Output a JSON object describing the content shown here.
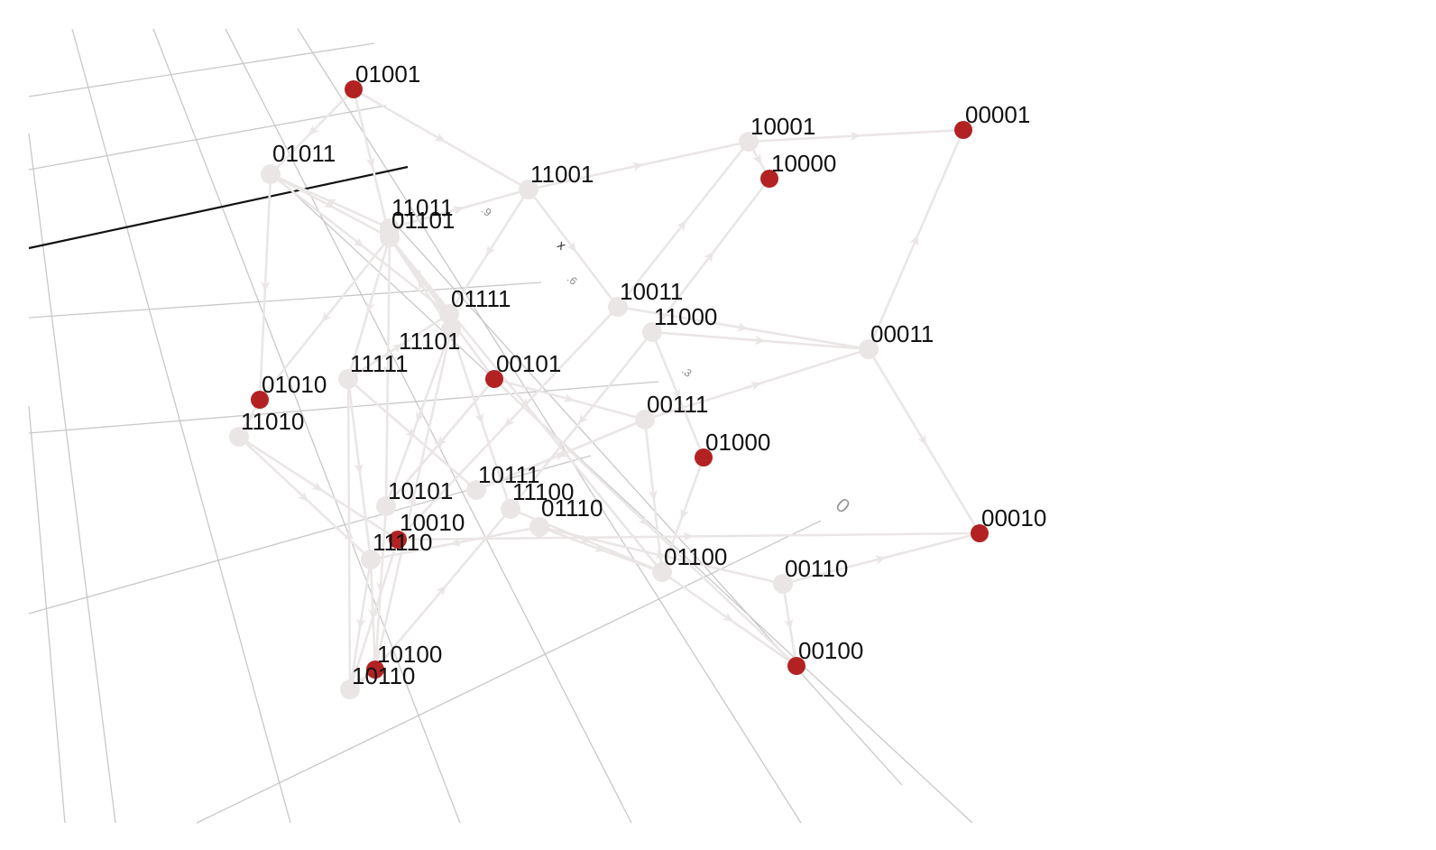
{
  "axes": {
    "x_label": "x",
    "tick_labels": [
      ".9",
      ".6",
      ".3",
      "0"
    ]
  },
  "colors": {
    "active_node": "#b22222",
    "inactive_node": "#ebe6e6",
    "edge": "#ebe6e6",
    "grid": "#c8c8c8",
    "axis_line": "#111111",
    "label": "#111111"
  },
  "nodes": [
    {
      "id": "01001",
      "active": true
    },
    {
      "id": "01011",
      "active": false
    },
    {
      "id": "11011",
      "active": false
    },
    {
      "id": "01101",
      "active": false
    },
    {
      "id": "11001",
      "active": false
    },
    {
      "id": "10001",
      "active": false
    },
    {
      "id": "10000",
      "active": true
    },
    {
      "id": "00001",
      "active": true
    },
    {
      "id": "01111",
      "active": false
    },
    {
      "id": "10011",
      "active": false
    },
    {
      "id": "11000",
      "active": false
    },
    {
      "id": "00011",
      "active": false
    },
    {
      "id": "11101",
      "active": false
    },
    {
      "id": "11111",
      "active": false
    },
    {
      "id": "00101",
      "active": true
    },
    {
      "id": "01010",
      "active": true
    },
    {
      "id": "11010",
      "active": false
    },
    {
      "id": "00111",
      "active": false
    },
    {
      "id": "01000",
      "active": true
    },
    {
      "id": "10111",
      "active": false
    },
    {
      "id": "10101",
      "active": false
    },
    {
      "id": "11100",
      "active": false
    },
    {
      "id": "01110",
      "active": false
    },
    {
      "id": "10010",
      "active": true
    },
    {
      "id": "11110",
      "active": false
    },
    {
      "id": "01100",
      "active": false
    },
    {
      "id": "00110",
      "active": false
    },
    {
      "id": "00010",
      "active": true
    },
    {
      "id": "10100",
      "active": true
    },
    {
      "id": "10110",
      "active": false
    },
    {
      "id": "00100",
      "active": true
    }
  ],
  "edges": [
    [
      "01001",
      "01011"
    ],
    [
      "01001",
      "11001"
    ],
    [
      "01001",
      "01101"
    ],
    [
      "01011",
      "01101"
    ],
    [
      "11011",
      "01011"
    ],
    [
      "01011",
      "01010"
    ],
    [
      "01011",
      "01111"
    ],
    [
      "11011",
      "11001"
    ],
    [
      "11001",
      "10001"
    ],
    [
      "11001",
      "10011"
    ],
    [
      "11001",
      "01111"
    ],
    [
      "10001",
      "00001"
    ],
    [
      "10001",
      "10000"
    ],
    [
      "10011",
      "10001"
    ],
    [
      "11000",
      "10000"
    ],
    [
      "00011",
      "00001"
    ],
    [
      "00011",
      "00010"
    ],
    [
      "11000",
      "00011"
    ],
    [
      "00111",
      "00011"
    ],
    [
      "01101",
      "00101"
    ],
    [
      "01101",
      "01111"
    ],
    [
      "01101",
      "11111"
    ],
    [
      "01101",
      "10101"
    ],
    [
      "01101",
      "01100"
    ],
    [
      "01101",
      "01010"
    ],
    [
      "11101",
      "11100"
    ],
    [
      "11101",
      "10101"
    ],
    [
      "11101",
      "01101"
    ],
    [
      "11111",
      "10111"
    ],
    [
      "11111",
      "11110"
    ],
    [
      "11111",
      "01111"
    ],
    [
      "00101",
      "00111"
    ],
    [
      "00101",
      "00100"
    ],
    [
      "00101",
      "10101"
    ],
    [
      "11010",
      "10010"
    ],
    [
      "11010",
      "11110"
    ],
    [
      "01010",
      "11010"
    ],
    [
      "00111",
      "01100"
    ],
    [
      "00111",
      "10111"
    ],
    [
      "10011",
      "10010"
    ],
    [
      "10011",
      "00011"
    ],
    [
      "01000",
      "01100"
    ],
    [
      "11000",
      "01000"
    ],
    [
      "11000",
      "11100"
    ],
    [
      "10111",
      "00111"
    ],
    [
      "10101",
      "00101"
    ],
    [
      "10101",
      "10100"
    ],
    [
      "11100",
      "01100"
    ],
    [
      "01110",
      "00110"
    ],
    [
      "01110",
      "11110"
    ],
    [
      "01110",
      "01100"
    ],
    [
      "10010",
      "10110"
    ],
    [
      "10010",
      "00010"
    ],
    [
      "11110",
      "10110"
    ],
    [
      "11110",
      "10100"
    ],
    [
      "01100",
      "00100"
    ],
    [
      "00110",
      "00100"
    ],
    [
      "00110",
      "00010"
    ],
    [
      "10100",
      "11100"
    ],
    [
      "10110",
      "10100"
    ],
    [
      "10100",
      "11101"
    ],
    [
      "10110",
      "11111"
    ]
  ]
}
